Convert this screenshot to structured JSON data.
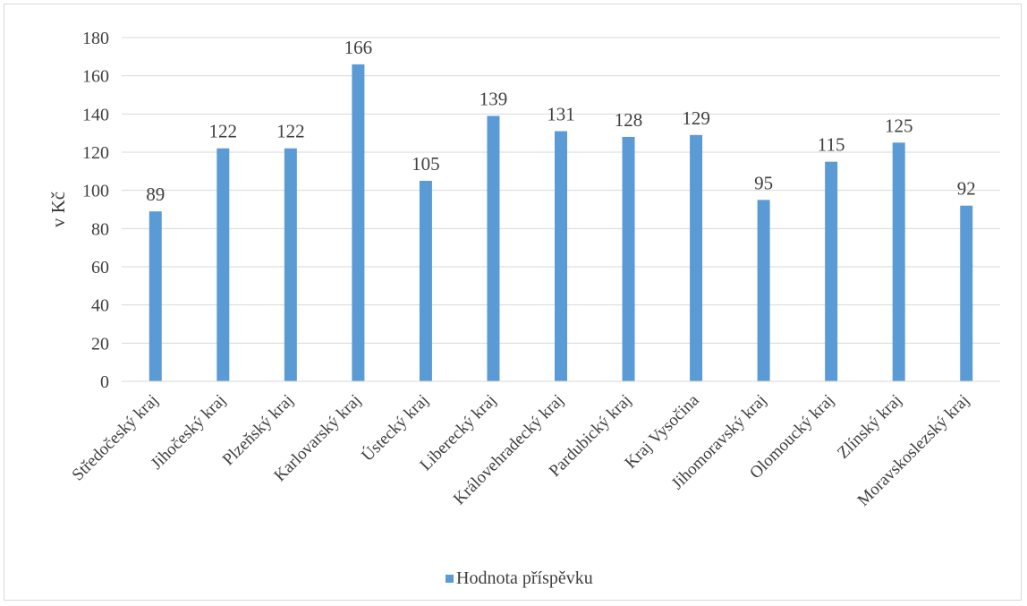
{
  "chart_data": {
    "type": "bar",
    "categories": [
      "Středočeský kraj",
      "Jihočeský kraj",
      "Plzeňský kraj",
      "Karlovarský kraj",
      "Ústecký kraj",
      "Liberecký kraj",
      "Královehradecký kraj",
      "Pardubický kraj",
      "Kraj Vysočina",
      "Jihomoravský kraj",
      "Olomoucký kraj",
      "Zlínský kraj",
      "Moravskoslezský kraj"
    ],
    "series": [
      {
        "name": "Hodnota příspěvku",
        "values": [
          89,
          122,
          122,
          166,
          105,
          139,
          131,
          128,
          129,
          95,
          115,
          125,
          92
        ],
        "color": "#5b9bd5"
      }
    ],
    "xlabel": "",
    "ylabel": "v Kč",
    "ylim": [
      0,
      180
    ],
    "yticks": [
      "0",
      "20",
      "40",
      "60",
      "80",
      "100",
      "120",
      "140",
      "160",
      "180"
    ],
    "grid": true,
    "legend": "bottom"
  }
}
